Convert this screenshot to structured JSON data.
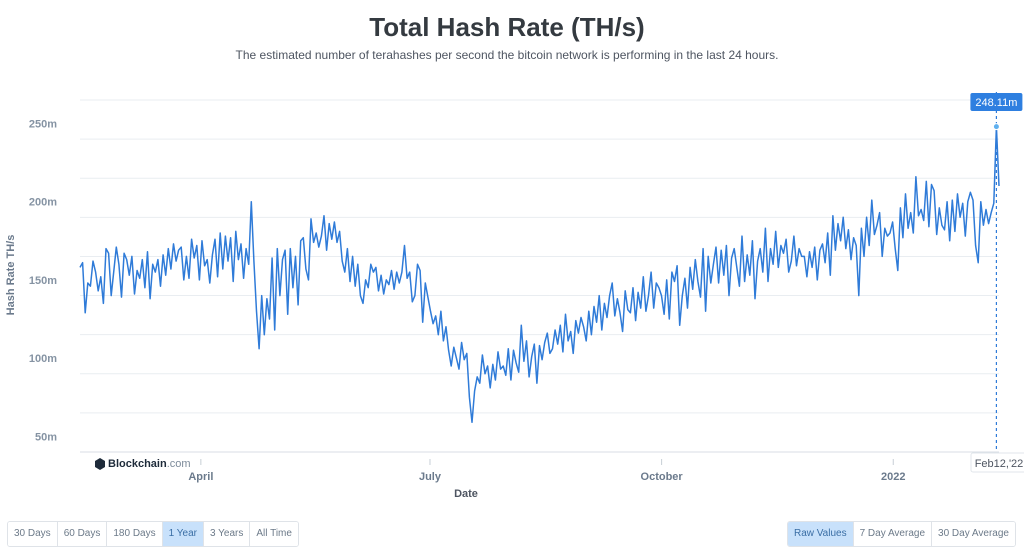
{
  "chart_data": {
    "type": "line",
    "title": "Total Hash Rate (TH/s)",
    "subtitle": "The estimated number of terahashes per second the bitcoin network is performing in the last 24 hours.",
    "xlabel": "Date",
    "ylabel": "Hash Rate TH/s",
    "x_ticks": [
      "April",
      "July",
      "October",
      "2022"
    ],
    "y_ticks": [
      "50m",
      "100m",
      "150m",
      "200m",
      "250m"
    ],
    "ylim": [
      40,
      265
    ],
    "x_range": [
      "2021-02-12",
      "2022-02-12"
    ],
    "grid": true,
    "legend": "none",
    "series_color": "#2f7bd8",
    "series": [
      {
        "values": [
          158,
          161,
          129,
          148,
          146,
          162,
          155,
          143,
          152,
          135,
          170,
          167,
          140,
          155,
          171,
          160,
          139,
          167,
          163,
          153,
          165,
          141,
          156,
          151,
          163,
          145,
          168,
          138,
          160,
          155,
          163,
          146,
          166,
          153,
          170,
          157,
          173,
          162,
          169,
          171,
          150,
          165,
          151,
          176,
          164,
          172,
          150,
          175,
          159,
          163,
          148,
          166,
          176,
          152,
          180,
          157,
          178,
          162,
          177,
          149,
          181,
          163,
          173,
          151,
          170,
          160,
          200,
          162,
          130,
          106,
          140,
          115,
          138,
          125,
          164,
          118,
          170,
          140,
          163,
          169,
          128,
          170,
          145,
          165,
          134,
          175,
          177,
          157,
          150,
          189,
          174,
          180,
          171,
          178,
          191,
          169,
          186,
          176,
          187,
          174,
          181,
          162,
          155,
          170,
          149,
          165,
          146,
          160,
          140,
          135,
          150,
          145,
          160,
          155,
          158,
          143,
          153,
          141,
          150,
          147,
          156,
          144,
          155,
          148,
          155,
          172,
          151,
          155,
          136,
          140,
          160,
          156,
          123,
          148,
          139,
          130,
          122,
          127,
          115,
          130,
          111,
          120,
          105,
          95,
          107,
          100,
          93,
          110,
          99,
          103,
          75,
          59,
          79,
          88,
          84,
          102,
          90,
          95,
          81,
          96,
          86,
          104,
          93,
          95,
          89,
          106,
          86,
          105,
          97,
          91,
          121,
          98,
          111,
          88,
          101,
          109,
          84,
          108,
          99,
          110,
          116,
          103,
          106,
          118,
          109,
          121,
          104,
          128,
          111,
          117,
          103,
          124,
          116,
          126,
          120,
          111,
          130,
          115,
          133,
          123,
          140,
          118,
          135,
          126,
          140,
          148,
          127,
          138,
          129,
          117,
          143,
          131,
          129,
          145,
          124,
          142,
          132,
          152,
          130,
          140,
          155,
          132,
          148,
          145,
          140,
          128,
          150,
          125,
          155,
          149,
          159,
          121,
          140,
          151,
          132,
          158,
          144,
          163,
          149,
          139,
          170,
          130,
          165,
          148,
          160,
          171,
          148,
          169,
          153,
          172,
          140,
          164,
          170,
          158,
          146,
          178,
          149,
          166,
          153,
          175,
          138,
          162,
          170,
          155,
          183,
          149,
          170,
          160,
          181,
          158,
          172,
          167,
          176,
          155,
          162,
          178,
          159,
          170,
          165,
          165,
          152,
          168,
          158,
          171,
          150,
          169,
          173,
          161,
          180,
          153,
          191,
          169,
          186,
          175,
          190,
          170,
          182,
          163,
          177,
          172,
          140,
          183,
          165,
          190,
          172,
          201,
          179,
          185,
          193,
          165,
          183,
          178,
          180,
          187,
          170,
          156,
          196,
          177,
          205,
          183,
          193,
          180,
          216,
          191,
          195,
          188,
          213,
          184,
          211,
          207,
          179,
          196,
          185,
          182,
          200,
          175,
          201,
          181,
          205,
          190,
          199,
          178,
          200,
          206,
          201,
          172,
          161,
          200,
          185,
          195,
          186,
          193,
          199,
          248,
          210
        ]
      }
    ],
    "last_label": "Feb12,'22",
    "tooltip_value": "248.11m"
  },
  "watermark": {
    "brand": "Blockchain",
    "suffix": ".com"
  },
  "range_buttons": [
    {
      "label": "30 Days",
      "active": false
    },
    {
      "label": "60 Days",
      "active": false
    },
    {
      "label": "180 Days",
      "active": false
    },
    {
      "label": "1 Year",
      "active": true
    },
    {
      "label": "3 Years",
      "active": false
    },
    {
      "label": "All Time",
      "active": false
    }
  ],
  "mode_buttons": [
    {
      "label": "Raw Values",
      "active": true
    },
    {
      "label": "7 Day Average",
      "active": false
    },
    {
      "label": "30 Day Average",
      "active": false
    }
  ]
}
